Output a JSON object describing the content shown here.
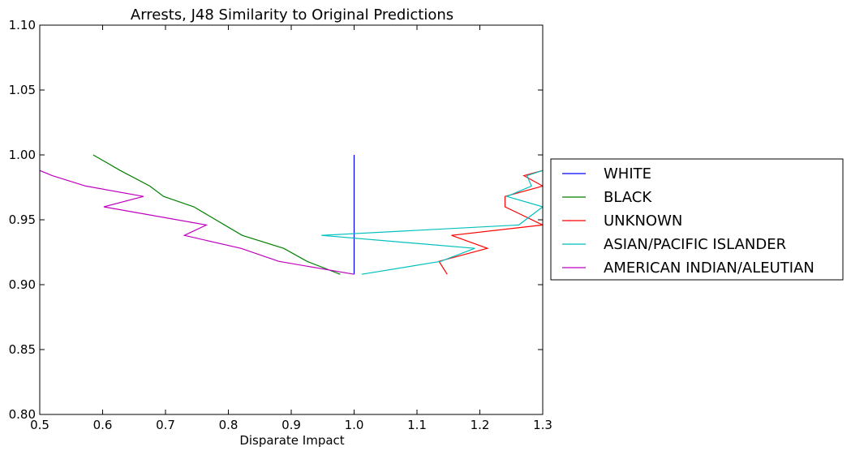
{
  "chart_data": {
    "type": "line",
    "title": "Arrests, J48 Similarity to Original Predictions",
    "xlabel": "Disparate Impact",
    "ylabel": "",
    "xlim": [
      0.5,
      1.3
    ],
    "ylim": [
      0.8,
      1.1
    ],
    "x_ticks": [
      "0.5",
      "0.6",
      "0.7",
      "0.8",
      "0.9",
      "1.0",
      "1.1",
      "1.2",
      "1.3"
    ],
    "y_ticks": [
      "0.80",
      "0.85",
      "0.90",
      "0.95",
      "1.00",
      "1.05",
      "1.10"
    ],
    "grid": false,
    "legend_position": "outside-right",
    "series": [
      {
        "name": "WHITE",
        "color": "#0000ff",
        "points": [
          [
            1.0,
            0.908
          ],
          [
            1.0,
            1.0
          ]
        ]
      },
      {
        "name": "BLACK",
        "color": "#008000",
        "points": [
          [
            0.978,
            0.908
          ],
          [
            0.925,
            0.918
          ],
          [
            0.888,
            0.928
          ],
          [
            0.822,
            0.938
          ],
          [
            0.745,
            0.96
          ],
          [
            0.697,
            0.968
          ],
          [
            0.675,
            0.976
          ],
          [
            0.628,
            0.988
          ],
          [
            0.585,
            1.0
          ]
        ]
      },
      {
        "name": "UNKNOWN",
        "color": "#ff0000",
        "points": [
          [
            1.148,
            0.908
          ],
          [
            1.135,
            0.918
          ],
          [
            1.212,
            0.928
          ],
          [
            1.155,
            0.938
          ],
          [
            1.3,
            0.946
          ],
          [
            1.24,
            0.96
          ],
          [
            1.24,
            0.968
          ],
          [
            1.3,
            0.976
          ],
          [
            1.27,
            0.984
          ],
          [
            1.3,
            0.988
          ]
        ]
      },
      {
        "name": "ASIAN/PACIFIC ISLANDER",
        "color": "#00bfbf",
        "points": [
          [
            1.012,
            0.908
          ],
          [
            1.138,
            0.918
          ],
          [
            1.192,
            0.928
          ],
          [
            0.948,
            0.938
          ],
          [
            1.262,
            0.946
          ],
          [
            1.3,
            0.96
          ],
          [
            1.243,
            0.968
          ],
          [
            1.282,
            0.976
          ],
          [
            1.275,
            0.984
          ],
          [
            1.3,
            0.988
          ]
        ]
      },
      {
        "name": "AMERICAN INDIAN/ALEUTIAN",
        "color": "#bf00bf",
        "points": [
          [
            1.0,
            0.908
          ],
          [
            0.88,
            0.918
          ],
          [
            0.82,
            0.928
          ],
          [
            0.73,
            0.938
          ],
          [
            0.765,
            0.946
          ],
          [
            0.602,
            0.96
          ],
          [
            0.665,
            0.968
          ],
          [
            0.573,
            0.976
          ],
          [
            0.52,
            0.984
          ],
          [
            0.5,
            0.988
          ]
        ]
      }
    ]
  }
}
